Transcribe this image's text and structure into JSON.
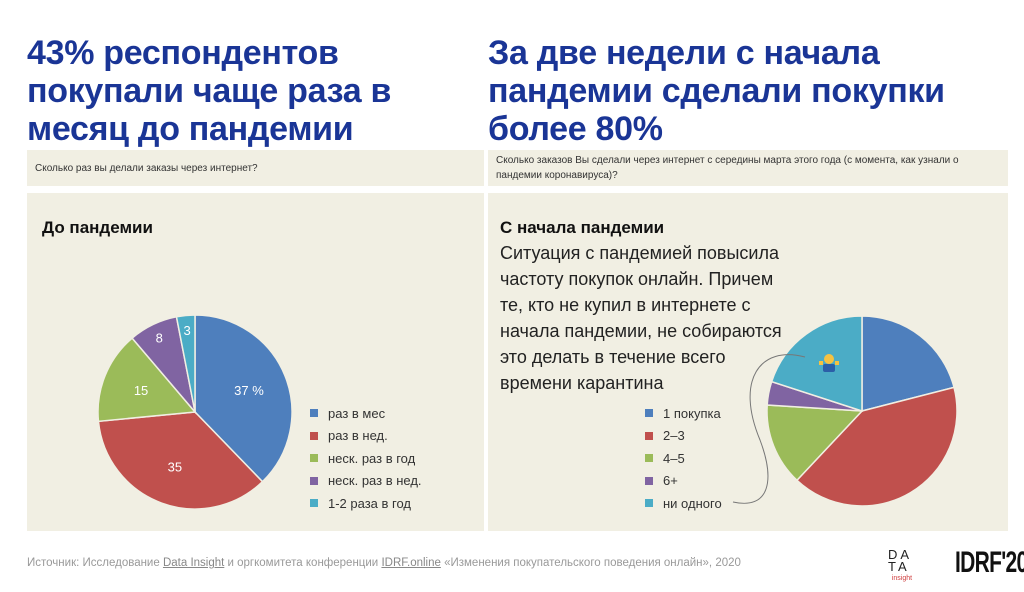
{
  "left": {
    "title_lines": [
      "43% респондентов",
      "покупали чаще раза в",
      "месяц до пандемии"
    ],
    "question": "Сколько раз вы делали заказы через интернет?"
  },
  "right": {
    "title_lines": [
      "За две недели с начала",
      "пандемии сделали покупки",
      "более 80%"
    ],
    "question": "Сколько заказов Вы сделали через интернет с середины марта этого года (с момента, как узнали о пандемии коронавируса)?",
    "description": "Ситуация с пандемией повысила частоту покупок онлайн. Причем те, кто не купил в интернете с начала пандемии, не собираются это делать в течение всего времени карантина"
  },
  "chart_data": [
    {
      "type": "pie",
      "title": "До пандемии",
      "categories": [
        "раз в мес",
        "раз в нед.",
        "неск. раз в год",
        "неск. раз в нед.",
        "1-2 раза в год"
      ],
      "values": [
        37,
        35,
        15,
        8,
        3
      ],
      "data_labels": [
        "37 %",
        "35",
        "15",
        "8",
        "3"
      ],
      "colors": [
        "#4e7fbd",
        "#c0504d",
        "#9bbb59",
        "#8064a2",
        "#4bacc6"
      ],
      "legend": "right"
    },
    {
      "type": "pie",
      "title": "С начала пандемии",
      "categories": [
        "1 покупка",
        "2–3",
        "4–5",
        "6+",
        "ни одного"
      ],
      "values": [
        21,
        41,
        14,
        4,
        20
      ],
      "colors": [
        "#4e7fbd",
        "#c0504d",
        "#9bbb59",
        "#8064a2",
        "#4bacc6"
      ],
      "legend": "left",
      "annotation_icon": "shrugging-person-icon"
    }
  ],
  "footer": {
    "prefix": "Источник: Исследование ",
    "link1": "Data Insight",
    "middle": " и оргкомитета конференции ",
    "link2": "IDRF.online",
    "suffix": " «Изменения покупательского поведения онлайн», 2020"
  },
  "logos": {
    "data_insight": "DATA insight",
    "idrf": "IDRF'20"
  }
}
